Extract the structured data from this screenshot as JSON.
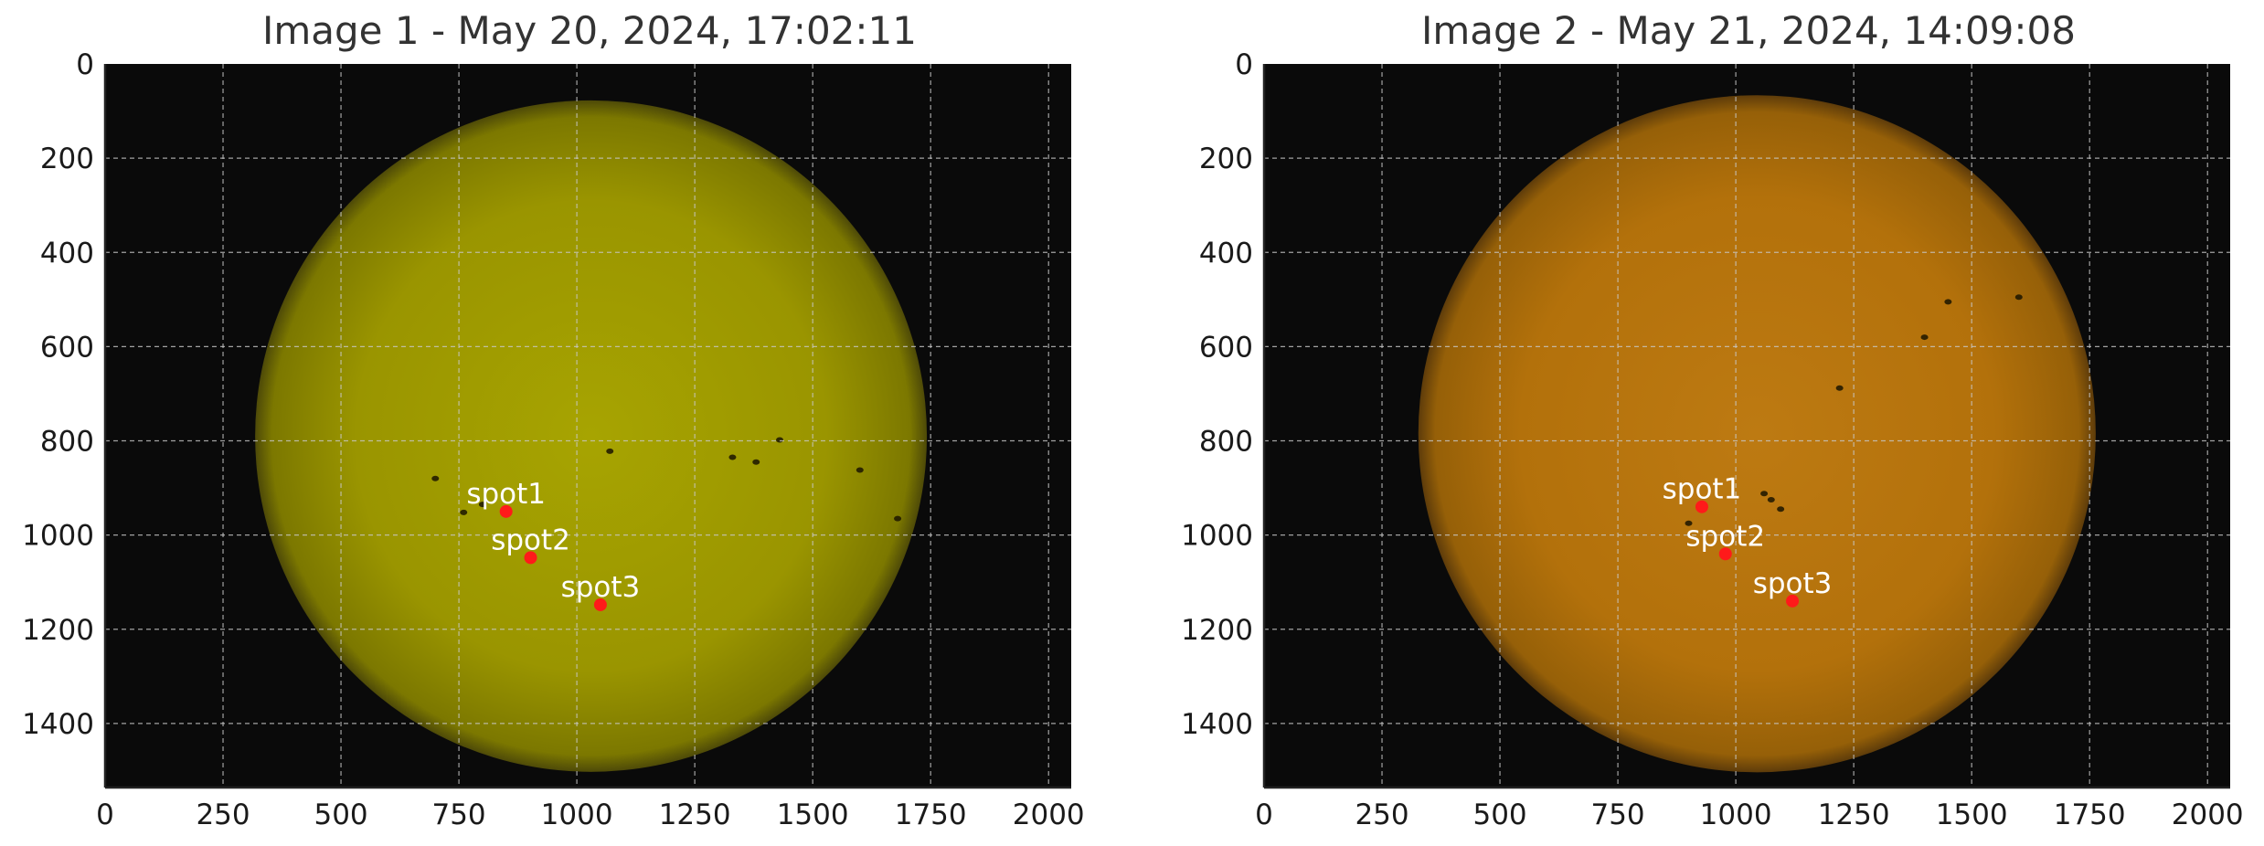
{
  "panels": [
    {
      "title": "Image 1 - May 20, 2024, 17:02:11",
      "x_ticks": [
        0,
        250,
        500,
        750,
        1000,
        1250,
        1500,
        1750,
        2000
      ],
      "y_ticks": [
        0,
        200,
        400,
        600,
        800,
        1000,
        1200,
        1400
      ],
      "x_range": [
        0,
        2048
      ],
      "y_range": [
        0,
        1536
      ],
      "sun": {
        "center": [
          1030,
          790
        ],
        "radius": 712,
        "colors": [
          "#a7a401",
          "#9a9500",
          "#7c7800",
          "#4e4a08"
        ]
      },
      "markers": [
        {
          "label": "spot1",
          "x": 850,
          "y": 950
        },
        {
          "label": "spot2",
          "x": 902,
          "y": 1048
        },
        {
          "label": "spot3",
          "x": 1050,
          "y": 1148
        }
      ],
      "sunspots": [
        [
          700,
          880
        ],
        [
          760,
          952
        ],
        [
          800,
          935
        ],
        [
          1070,
          822
        ],
        [
          1330,
          835
        ],
        [
          1380,
          845
        ],
        [
          1430,
          798
        ],
        [
          1600,
          862
        ],
        [
          1680,
          965
        ]
      ]
    },
    {
      "title": "Image 2 - May 21, 2024, 14:09:08",
      "x_ticks": [
        0,
        250,
        500,
        750,
        1000,
        1250,
        1500,
        1750,
        2000
      ],
      "y_ticks": [
        0,
        200,
        400,
        600,
        800,
        1000,
        1200,
        1400
      ],
      "x_range": [
        0,
        2048
      ],
      "y_range": [
        0,
        1536
      ],
      "sun": {
        "center": [
          1045,
          785
        ],
        "radius": 718,
        "colors": [
          "#bd7a12",
          "#b3710b",
          "#966008",
          "#5e3c0a"
        ]
      },
      "markers": [
        {
          "label": "spot1",
          "x": 928,
          "y": 940
        },
        {
          "label": "spot2",
          "x": 978,
          "y": 1040
        },
        {
          "label": "spot3",
          "x": 1120,
          "y": 1140
        }
      ],
      "sunspots": [
        [
          1060,
          912
        ],
        [
          1075,
          925
        ],
        [
          1095,
          945
        ],
        [
          1220,
          688
        ],
        [
          1400,
          580
        ],
        [
          1450,
          505
        ],
        [
          1600,
          495
        ],
        [
          900,
          975
        ]
      ]
    }
  ],
  "colors": {
    "background": "#0a0a0a",
    "marker": "#ff1a1a",
    "label": "#ffffff",
    "grid": "#c8c8c8",
    "axis_text": "#1a1a1a",
    "title_text": "#333333"
  }
}
